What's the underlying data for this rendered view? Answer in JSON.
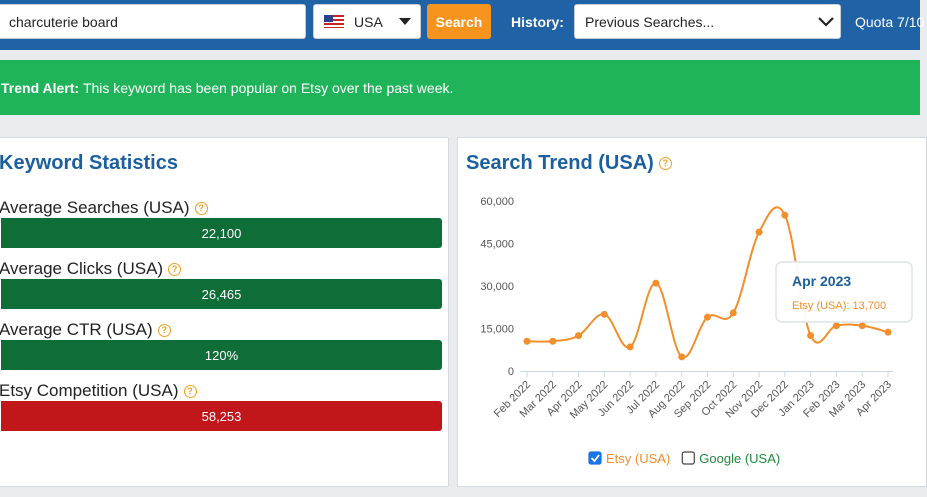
{
  "search": {
    "query": "charcuterie board",
    "country": "USA",
    "button": "Search",
    "history_label": "History:",
    "history_placeholder": "Previous Searches...",
    "quota": "Quota 7/10"
  },
  "alert": {
    "title": "Trend Alert:",
    "text": "This keyword has been popular on Etsy over the past week."
  },
  "keyword_statistics": {
    "title": "Keyword Statistics",
    "stats": [
      {
        "label": "Average Searches (USA)",
        "value": "22,100",
        "color": "#0f6d38"
      },
      {
        "label": "Average Clicks (USA)",
        "value": "26,465",
        "color": "#0f6d38"
      },
      {
        "label": "Average CTR (USA)",
        "value": "120%",
        "color": "#0f6d38"
      },
      {
        "label": "Etsy Competition (USA)",
        "value": "58,253",
        "color": "#c1171b"
      }
    ]
  },
  "chart_data": {
    "type": "line",
    "title": "Search Trend (USA)",
    "categories": [
      "Feb 2022",
      "Mar 2022",
      "Apr 2022",
      "May 2022",
      "Jun 2022",
      "Jul 2022",
      "Aug 2022",
      "Sep 2022",
      "Oct 2022",
      "Nov 2022",
      "Dec 2022",
      "Jan 2023",
      "Feb 2023",
      "Mar 2023",
      "Apr 2023"
    ],
    "series": [
      {
        "name": "Etsy (USA)",
        "color": "#f28e2b",
        "checked": true,
        "values": [
          10500,
          10500,
          12500,
          20000,
          8500,
          31000,
          5000,
          19000,
          20500,
          49000,
          55000,
          12500,
          16000,
          16000,
          13700
        ]
      }
    ],
    "legend_only": [
      {
        "name": "Google (USA)",
        "color": "#1e8a3c",
        "checked": false
      }
    ],
    "ylim": [
      0,
      60000
    ],
    "yticks": [
      0,
      {
        "value": 15000,
        "label": "15,000"
      },
      {
        "value": 30000,
        "label": "30,000"
      },
      {
        "value": 45000,
        "label": "45,000"
      },
      {
        "value": 60000,
        "label": "60,000"
      }
    ],
    "grid": false,
    "tooltip": {
      "title": "Apr 2023",
      "text": "Etsy (USA): 13,700"
    }
  }
}
